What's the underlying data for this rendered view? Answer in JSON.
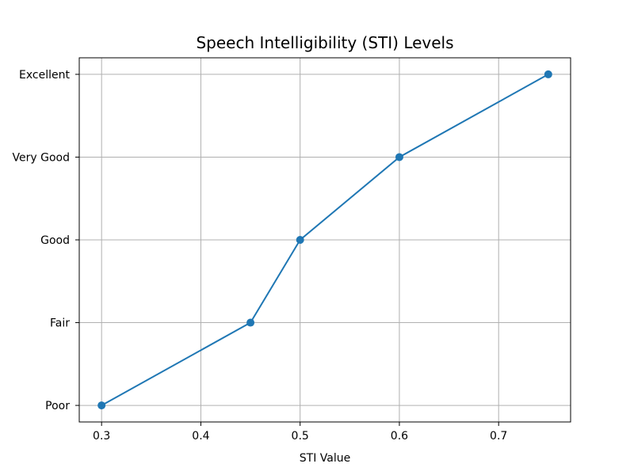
{
  "chart_data": {
    "type": "line",
    "title": "Speech Intelligibility (STI) Levels",
    "xlabel": "STI Value",
    "ylabel": "",
    "x": [
      0.3,
      0.45,
      0.5,
      0.6,
      0.75
    ],
    "y": [
      "Poor",
      "Fair",
      "Good",
      "Very Good",
      "Excellent"
    ],
    "categories": [
      "Poor",
      "Fair",
      "Good",
      "Very Good",
      "Excellent"
    ],
    "x_ticks": [
      0.3,
      0.4,
      0.5,
      0.6,
      0.7
    ],
    "x_tick_labels": [
      "0.3",
      "0.4",
      "0.5",
      "0.6",
      "0.7"
    ],
    "xlim": [
      0.2775,
      0.7725
    ],
    "grid": true,
    "legend": "none",
    "series_color": "#1f77b4",
    "marker": "circle"
  }
}
